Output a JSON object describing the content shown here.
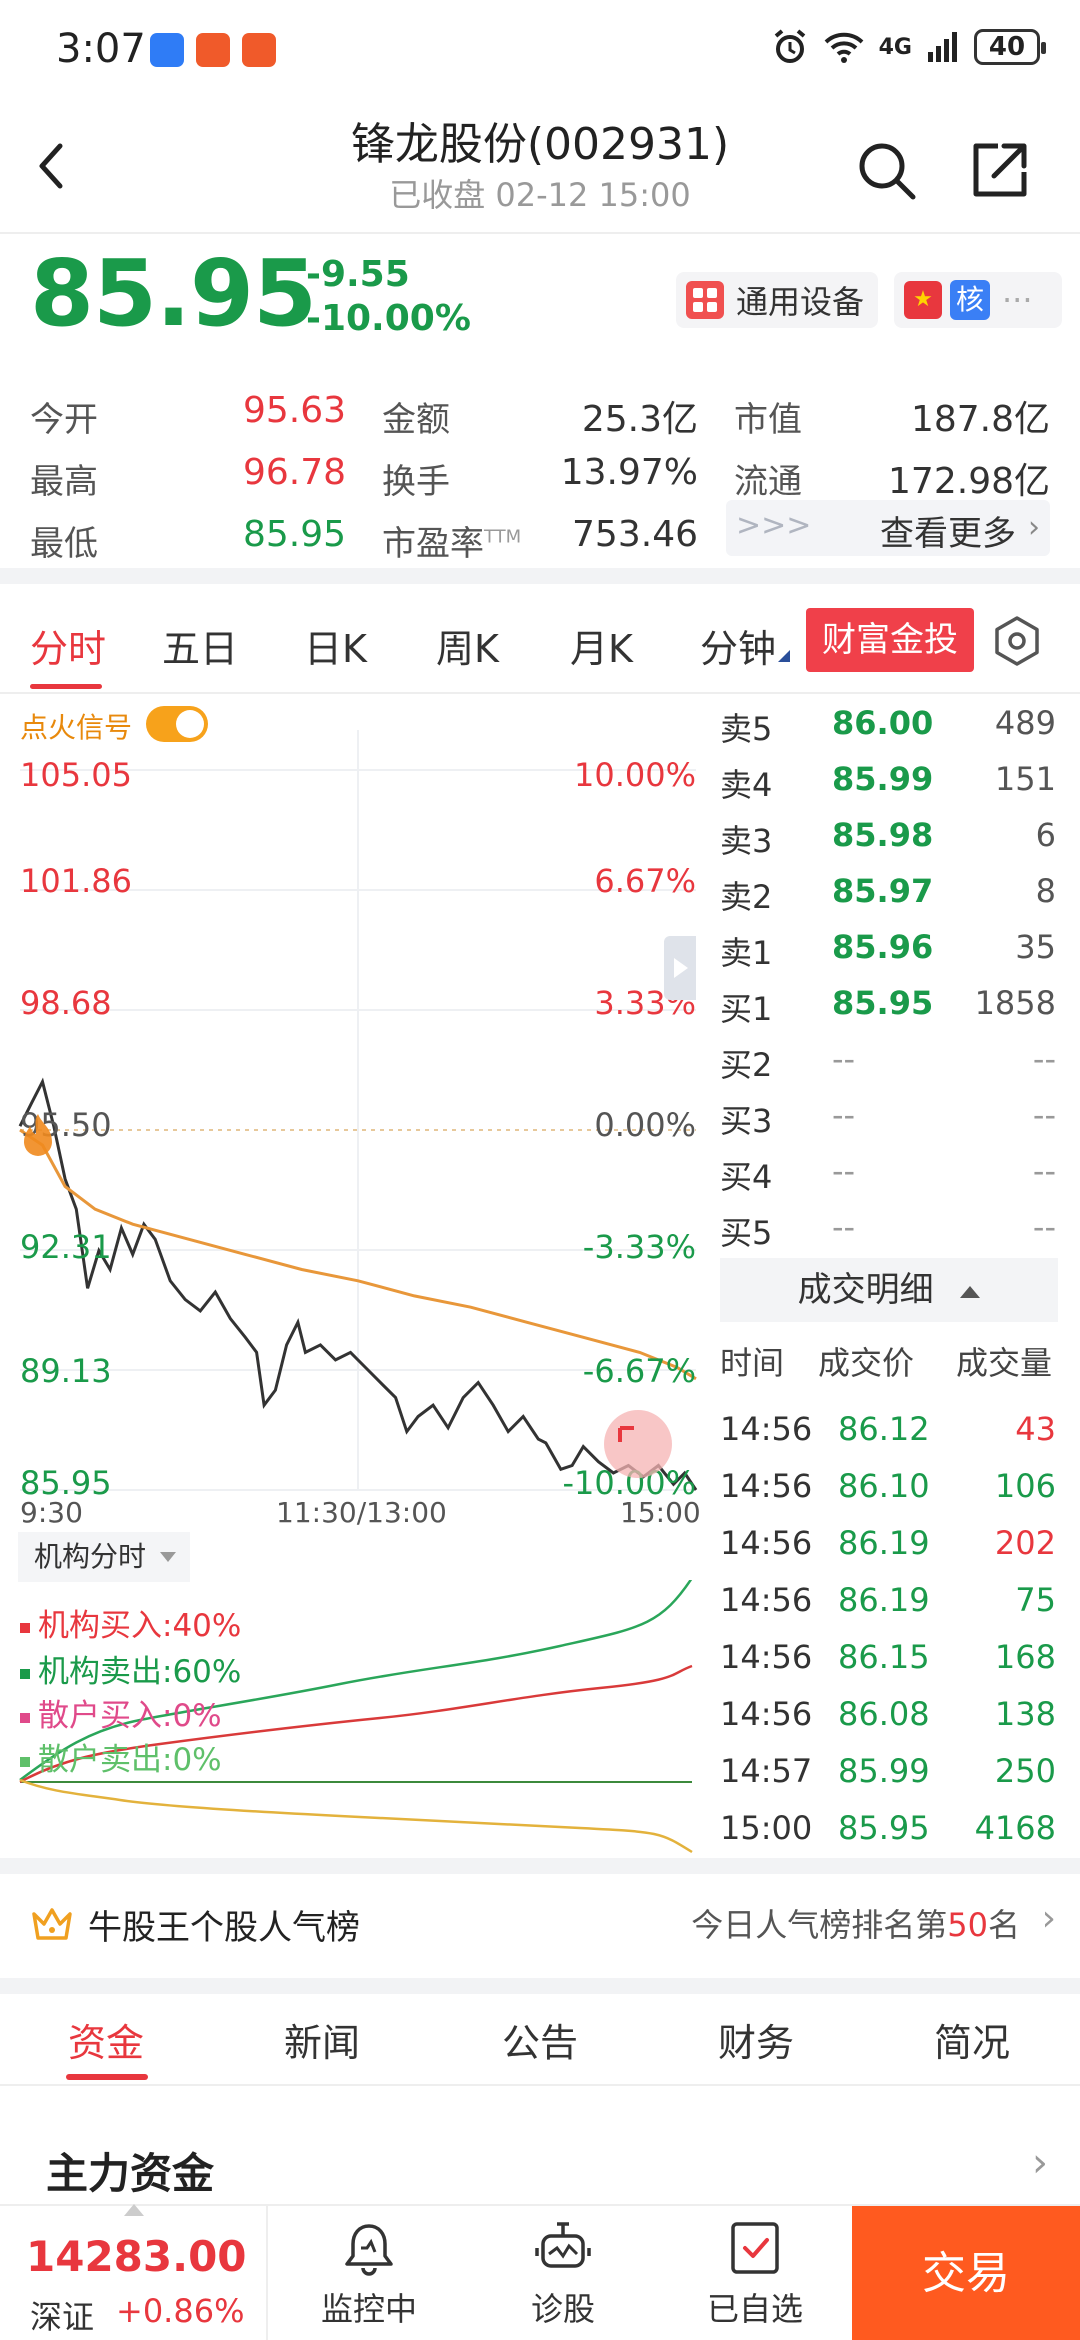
{
  "status_bar": {
    "time": "3:07",
    "network": "4G",
    "battery": "40"
  },
  "header": {
    "title": "锋龙股份(002931)",
    "subtitle": "已收盘 02-12 15:00"
  },
  "quote": {
    "price": "85.95",
    "change": "-9.55",
    "change_pct": "-10.00%",
    "sector_tag": "通用设备",
    "core_tag": "核",
    "more_dots": "···"
  },
  "stats": [
    {
      "label": "今开",
      "value": "95.63"
    },
    {
      "label": "最高",
      "value": "96.78"
    },
    {
      "label": "最低",
      "value": "85.95"
    },
    {
      "label": "金额",
      "value": "25.3亿"
    },
    {
      "label": "换手",
      "value": "13.97%"
    },
    {
      "label": "市盈率",
      "sup": "TTM",
      "value": "753.46"
    },
    {
      "label": "市值",
      "value": "187.8亿"
    },
    {
      "label": "流通",
      "value": "172.98亿"
    }
  ],
  "more": {
    "arrows": ">>>",
    "label": "查看更多"
  },
  "chart_tabs": [
    "分时",
    "五日",
    "日K",
    "周K",
    "月K",
    "分钟"
  ],
  "promo_label": "财富金投",
  "signal": {
    "label": "点火信号",
    "on": true
  },
  "chart_data": {
    "type": "line",
    "title": "",
    "x_labels": [
      "9:30",
      "11:30/13:00",
      "15:00"
    ],
    "y_left_ticks": [
      "105.05",
      "101.86",
      "98.68",
      "95.50",
      "92.31",
      "89.13",
      "85.95"
    ],
    "y_right_ticks": [
      "10.00%",
      "6.67%",
      "3.33%",
      "0.00%",
      "-3.33%",
      "-6.67%",
      "-10.00%"
    ],
    "ylim": [
      85.95,
      105.05
    ],
    "reference_price": 95.5,
    "series": [
      {
        "name": "price",
        "color": "#333333",
        "points": [
          [
            0,
            95.6
          ],
          [
            3,
            96.2
          ],
          [
            6,
            96.78
          ],
          [
            9,
            95.6
          ],
          [
            12,
            94.2
          ],
          [
            15,
            93.4
          ],
          [
            18,
            91.3
          ],
          [
            21,
            92.3
          ],
          [
            24,
            91.8
          ],
          [
            27,
            92.9
          ],
          [
            30,
            92.2
          ],
          [
            33,
            93.0
          ],
          [
            36,
            92.6
          ],
          [
            40,
            91.5
          ],
          [
            44,
            91.0
          ],
          [
            48,
            90.7
          ],
          [
            52,
            91.2
          ],
          [
            56,
            90.5
          ],
          [
            60,
            90.0
          ],
          [
            63,
            89.6
          ],
          [
            65,
            88.2
          ],
          [
            68,
            88.6
          ],
          [
            71,
            89.8
          ],
          [
            74,
            90.4
          ],
          [
            76,
            89.6
          ],
          [
            80,
            89.8
          ],
          [
            84,
            89.4
          ],
          [
            88,
            89.6
          ],
          [
            92,
            89.2
          ],
          [
            96,
            88.8
          ],
          [
            100,
            88.4
          ],
          [
            103,
            87.5
          ],
          [
            106,
            87.9
          ],
          [
            110,
            88.2
          ],
          [
            114,
            87.6
          ],
          [
            118,
            88.4
          ],
          [
            122,
            88.8
          ],
          [
            126,
            88.2
          ],
          [
            130,
            87.5
          ],
          [
            134,
            87.9
          ],
          [
            138,
            87.3
          ],
          [
            140,
            87.2
          ],
          [
            144,
            86.5
          ],
          [
            147,
            86.6
          ],
          [
            150,
            87.1
          ],
          [
            154,
            86.7
          ],
          [
            158,
            86.4
          ],
          [
            162,
            86.6
          ],
          [
            166,
            86.3
          ],
          [
            170,
            86.6
          ],
          [
            174,
            86.1
          ],
          [
            177,
            86.4
          ],
          [
            180,
            85.95
          ]
        ]
      },
      {
        "name": "average",
        "color": "#e8973a",
        "points": [
          [
            0,
            95.5
          ],
          [
            6,
            95.1
          ],
          [
            12,
            94.0
          ],
          [
            20,
            93.4
          ],
          [
            30,
            93.0
          ],
          [
            45,
            92.6
          ],
          [
            60,
            92.2
          ],
          [
            75,
            91.8
          ],
          [
            90,
            91.5
          ],
          [
            105,
            91.1
          ],
          [
            120,
            90.8
          ],
          [
            135,
            90.4
          ],
          [
            150,
            90.0
          ],
          [
            165,
            89.6
          ],
          [
            175,
            89.2
          ],
          [
            180,
            88.9
          ]
        ]
      }
    ]
  },
  "order_book": {
    "asks": [
      {
        "label": "卖5",
        "price": "86.00",
        "vol": "489"
      },
      {
        "label": "卖4",
        "price": "85.99",
        "vol": "151"
      },
      {
        "label": "卖3",
        "price": "85.98",
        "vol": "6"
      },
      {
        "label": "卖2",
        "price": "85.97",
        "vol": "8"
      },
      {
        "label": "卖1",
        "price": "85.96",
        "vol": "35"
      }
    ],
    "bids": [
      {
        "label": "买1",
        "price": "85.95",
        "vol": "1858"
      },
      {
        "label": "买2",
        "price": "--",
        "vol": "--"
      },
      {
        "label": "买3",
        "price": "--",
        "vol": "--"
      },
      {
        "label": "买4",
        "price": "--",
        "vol": "--"
      },
      {
        "label": "买5",
        "price": "--",
        "vol": "--"
      }
    ]
  },
  "trade_detail": {
    "title": "成交明细",
    "headers": [
      "时间",
      "成交价",
      "成交量"
    ],
    "rows": [
      {
        "time": "14:56",
        "price": "86.12",
        "vol": "43",
        "dir": "buy"
      },
      {
        "time": "14:56",
        "price": "86.10",
        "vol": "106",
        "dir": "sell"
      },
      {
        "time": "14:56",
        "price": "86.19",
        "vol": "202",
        "dir": "buy"
      },
      {
        "time": "14:56",
        "price": "86.19",
        "vol": "75",
        "dir": "sell"
      },
      {
        "time": "14:56",
        "price": "86.15",
        "vol": "168",
        "dir": "sell"
      },
      {
        "time": "14:56",
        "price": "86.08",
        "vol": "138",
        "dir": "sell"
      },
      {
        "time": "14:57",
        "price": "85.99",
        "vol": "250",
        "dir": "sell"
      },
      {
        "time": "15:00",
        "price": "85.95",
        "vol": "4168",
        "dir": "sell"
      }
    ]
  },
  "institution": {
    "selector": "机构分时",
    "legend": [
      {
        "label": "机构买入:40%",
        "color": "#e8373e"
      },
      {
        "label": "机构卖出:60%",
        "color": "#1a9a4a"
      },
      {
        "label": "散户买入:0%",
        "color": "#e04a8a"
      },
      {
        "label": "散户卖出:0%",
        "color": "#5fc06a"
      }
    ]
  },
  "popularity": {
    "title": "牛股王个股人气榜",
    "rank_prefix": "今日人气榜排名第",
    "rank": "50",
    "rank_suffix": "名"
  },
  "bottom_tabs": [
    "资金",
    "新闻",
    "公告",
    "财务",
    "简况"
  ],
  "main_fund": {
    "title": "主力资金"
  },
  "index": {
    "value": "14283.00",
    "name": "深证",
    "change": "+0.86%"
  },
  "bottom_bar": {
    "monitor": "监控中",
    "diagnose": "诊股",
    "watchlist": "已自选",
    "trade": "交易"
  }
}
